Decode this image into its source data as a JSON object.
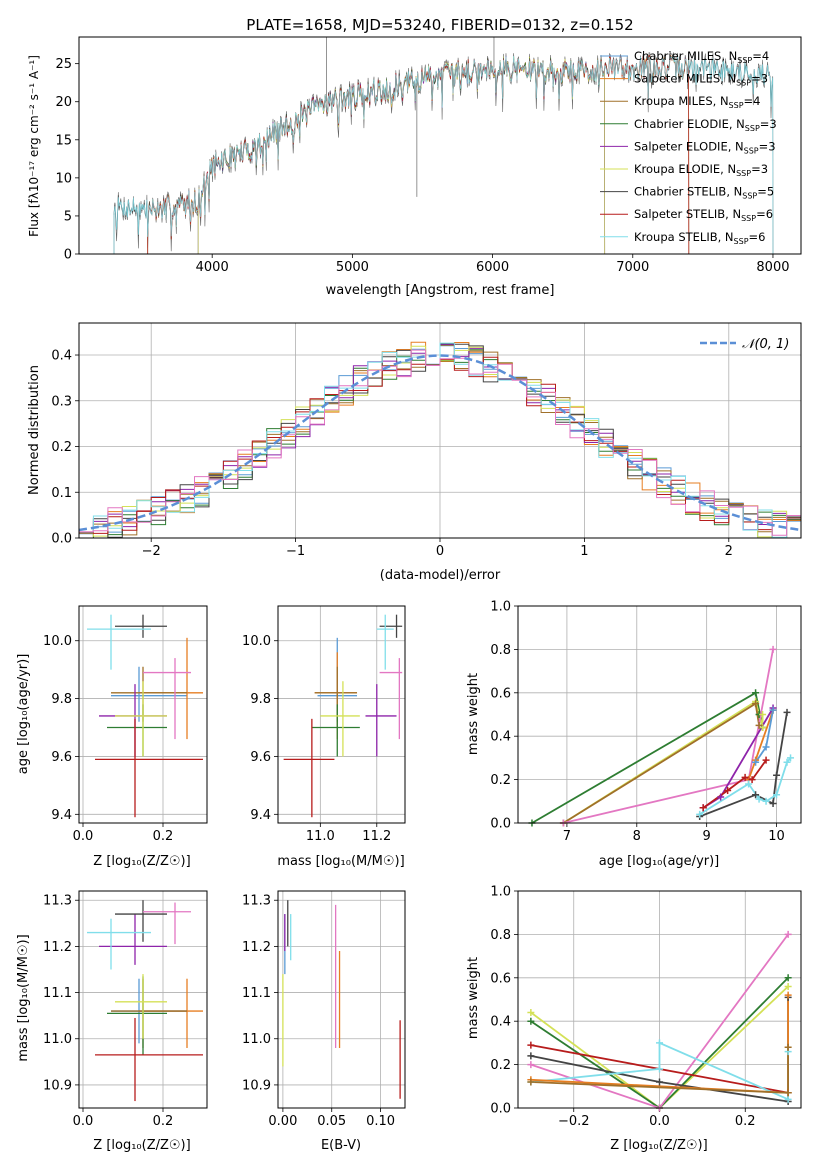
{
  "colors": {
    "Chabrier MILES": "#5b9bd5",
    "Salpeter MILES": "#e67e22",
    "Kroupa MILES": "#a0702a",
    "Chabrier ELODIE": "#2e7d32",
    "Salpeter ELODIE": "#8e24aa",
    "Kroupa ELODIE": "#d4e157",
    "Chabrier STELIB": "#444444",
    "Salpeter STELIB": "#b71c1c",
    "Kroupa STELIB": "#80deea",
    "pink": "#e377c2",
    "normal": "#5b8fd6"
  },
  "chart_data": [
    {
      "id": "spectrum",
      "type": "line",
      "title": "PLATE=1658, MJD=53240, FIBERID=0132, z=0.152",
      "xlabel": "wavelength [Angstrom, rest frame]",
      "ylabel": "Flux [fλ10⁻¹⁷ erg cm⁻² s⁻¹ A⁻¹]",
      "xlim": [
        3050,
        8200
      ],
      "ylim": [
        0,
        28.5
      ],
      "xticks": [
        4000,
        5000,
        6000,
        7000,
        8000
      ],
      "yticks": [
        0,
        5,
        10,
        15,
        20,
        25
      ],
      "legend_position": "top-right",
      "legend": [
        {
          "label": "Chabrier MILES, N",
          "sub": "SSP",
          "suffix": "=4"
        },
        {
          "label": "Salpeter MILES, N",
          "sub": "SSP",
          "suffix": "=3"
        },
        {
          "label": "Kroupa MILES, N",
          "sub": "SSP",
          "suffix": "=4"
        },
        {
          "label": "Chabrier ELODIE, N",
          "sub": "SSP",
          "suffix": "=3"
        },
        {
          "label": "Salpeter ELODIE, N",
          "sub": "SSP",
          "suffix": "=3"
        },
        {
          "label": "Kroupa ELODIE, N",
          "sub": "SSP",
          "suffix": "=3"
        },
        {
          "label": "Chabrier STELIB, N",
          "sub": "SSP",
          "suffix": "=5"
        },
        {
          "label": "Salpeter STELIB, N",
          "sub": "SSP",
          "suffix": "=6"
        },
        {
          "label": "Kroupa STELIB, N",
          "sub": "SSP",
          "suffix": "=6"
        }
      ],
      "continuum_nodes": [
        [
          3300,
          6.2
        ],
        [
          3600,
          5.8
        ],
        [
          3900,
          7.0
        ],
        [
          4000,
          11.5
        ],
        [
          4300,
          14.0
        ],
        [
          4500,
          16.5
        ],
        [
          4800,
          20.0
        ],
        [
          5200,
          21.5
        ],
        [
          5600,
          23.5
        ],
        [
          6000,
          24.5
        ],
        [
          6500,
          24.0
        ],
        [
          7000,
          24.5
        ],
        [
          7500,
          24.5
        ],
        [
          8000,
          23.5
        ]
      ]
    },
    {
      "id": "residuals",
      "type": "line",
      "xlabel": "(data-model)/error",
      "ylabel": "Normed distribution",
      "xlim": [
        -2.5,
        2.5
      ],
      "ylim": [
        0,
        0.47
      ],
      "xticks": [
        -2,
        -1,
        0,
        1,
        2
      ],
      "yticks": [
        0.0,
        0.1,
        0.2,
        0.3,
        0.4
      ],
      "grid": true,
      "legend": [
        {
          "label": "𝒩(0, 1)"
        }
      ],
      "legend_position": "top-right",
      "bin_width": 0.1
    },
    {
      "id": "age_Z",
      "type": "scatter",
      "xlabel": "Z [log₁₀(Z/Z☉)]",
      "ylabel": "age  [log₁₀(age/yr)]",
      "xlim": [
        -0.01,
        0.31
      ],
      "ylim": [
        9.37,
        10.12
      ],
      "xticks": [
        0.0,
        0.2
      ],
      "yticks": [
        9.4,
        9.6,
        9.8,
        10.0
      ],
      "grid": true,
      "points": [
        {
          "model": "Chabrier MILES",
          "x": 0.14,
          "y": 9.81,
          "xerr": [
            0.07,
            0.12
          ],
          "yerr": [
            0.09,
            0.1
          ]
        },
        {
          "model": "Salpeter MILES",
          "x": 0.26,
          "y": 9.82,
          "xerr": [
            0.12,
            0.04
          ],
          "yerr": [
            0.16,
            0.19
          ]
        },
        {
          "model": "Kroupa MILES",
          "x": 0.15,
          "y": 9.82,
          "xerr": [
            0.08,
            0.11
          ],
          "yerr": [
            0.1,
            0.09
          ]
        },
        {
          "model": "Chabrier ELODIE",
          "x": 0.15,
          "y": 9.7,
          "xerr": [
            0.09,
            0.06
          ],
          "yerr": [
            0.1,
            0.08
          ]
        },
        {
          "model": "Salpeter ELODIE",
          "x": 0.13,
          "y": 9.74,
          "xerr": [
            0.09,
            0.08
          ],
          "yerr": [
            0.14,
            0.11
          ]
        },
        {
          "model": "Kroupa ELODIE",
          "x": 0.15,
          "y": 9.74,
          "xerr": [
            0.07,
            0.06
          ],
          "yerr": [
            0.14,
            0.12
          ]
        },
        {
          "model": "Chabrier STELIB",
          "x": 0.15,
          "y": 10.05,
          "xerr": [
            0.07,
            0.06
          ],
          "yerr": [
            0.04,
            0.04
          ]
        },
        {
          "model": "Salpeter STELIB",
          "x": 0.13,
          "y": 9.59,
          "xerr": [
            0.1,
            0.17
          ],
          "yerr": [
            0.2,
            0.14
          ]
        },
        {
          "model": "Kroupa STELIB",
          "x": 0.07,
          "y": 10.04,
          "xerr": [
            0.06,
            0.1
          ],
          "yerr": [
            0.14,
            0.05
          ]
        },
        {
          "model": "pink",
          "x": 0.23,
          "y": 9.89,
          "xerr": [
            0.08,
            0.04
          ],
          "yerr": [
            0.23,
            0.05
          ]
        }
      ]
    },
    {
      "id": "age_mass",
      "type": "scatter",
      "xlabel": "mass [log₁₀(M/M☉)]",
      "xlim": [
        10.85,
        11.3
      ],
      "ylim": [
        9.37,
        10.12
      ],
      "xticks": [
        11.0,
        11.2
      ],
      "yticks": [
        9.4,
        9.6,
        9.8,
        10.0
      ],
      "grid": true,
      "points": [
        {
          "model": "Chabrier MILES",
          "x": 11.06,
          "y": 9.81,
          "xerr": [
            0.07,
            0.07
          ],
          "yerr": [
            0.09,
            0.2
          ]
        },
        {
          "model": "Salpeter MILES",
          "x": 11.06,
          "y": 9.82,
          "xerr": [
            0.08,
            0.07
          ],
          "yerr": [
            0.16,
            0.14
          ]
        },
        {
          "model": "Kroupa MILES",
          "x": 11.06,
          "y": 9.82,
          "xerr": [
            0.08,
            0.07
          ],
          "yerr": [
            0.1,
            0.09
          ]
        },
        {
          "model": "Chabrier ELODIE",
          "x": 11.06,
          "y": 9.7,
          "xerr": [
            0.09,
            0.08
          ],
          "yerr": [
            0.1,
            0.08
          ]
        },
        {
          "model": "Salpeter ELODIE",
          "x": 11.2,
          "y": 9.74,
          "xerr": [
            0.04,
            0.07
          ],
          "yerr": [
            0.14,
            0.11
          ]
        },
        {
          "model": "Kroupa ELODIE",
          "x": 11.08,
          "y": 9.74,
          "xerr": [
            0.08,
            0.06
          ],
          "yerr": [
            0.14,
            0.12
          ]
        },
        {
          "model": "Chabrier STELIB",
          "x": 11.27,
          "y": 10.05,
          "xerr": [
            0.06,
            0.02
          ],
          "yerr": [
            0.04,
            0.04
          ]
        },
        {
          "model": "Salpeter STELIB",
          "x": 10.97,
          "y": 9.59,
          "xerr": [
            0.1,
            0.08
          ],
          "yerr": [
            0.2,
            0.14
          ]
        },
        {
          "model": "Kroupa STELIB",
          "x": 11.23,
          "y": 10.04,
          "xerr": [
            0.03,
            0.03
          ],
          "yerr": [
            0.14,
            0.05
          ]
        },
        {
          "model": "pink",
          "x": 11.28,
          "y": 9.89,
          "xerr": [
            0.07,
            0.01
          ],
          "yerr": [
            0.23,
            0.05
          ]
        }
      ]
    },
    {
      "id": "mass_weight_age",
      "type": "line",
      "xlabel": "age  [log₁₀(age/yr)]",
      "ylabel": "mass weight",
      "xlim": [
        6.3,
        10.35
      ],
      "ylim": [
        0,
        1.0
      ],
      "xticks": [
        7,
        8,
        9,
        10
      ],
      "yticks": [
        0.0,
        0.2,
        0.4,
        0.6,
        0.8,
        1.0
      ],
      "grid": true,
      "series": [
        {
          "model": "Chabrier ELODIE",
          "x": [
            6.5,
            9.7,
            9.8,
            9.75
          ],
          "y": [
            0.0,
            0.6,
            0.44,
            0.5
          ]
        },
        {
          "model": "Kroupa ELODIE",
          "x": [
            6.95,
            9.7,
            9.8,
            9.8
          ],
          "y": [
            0.0,
            0.56,
            0.44,
            0.5
          ]
        },
        {
          "model": "Kroupa MILES",
          "x": [
            6.95,
            9.7,
            9.75
          ],
          "y": [
            0.0,
            0.55,
            0.45
          ]
        },
        {
          "model": "pink",
          "x": [
            6.95,
            9.6,
            9.95
          ],
          "y": [
            0.0,
            0.2,
            0.8
          ]
        },
        {
          "model": "Salpeter MILES",
          "x": [
            9.6,
            9.7,
            9.95
          ],
          "y": [
            0.2,
            0.29,
            0.52
          ]
        },
        {
          "model": "Salpeter ELODIE",
          "x": [
            8.95,
            9.2,
            9.95
          ],
          "y": [
            0.07,
            0.12,
            0.53
          ]
        },
        {
          "model": "Chabrier MILES",
          "x": [
            9.7,
            9.85,
            9.95
          ],
          "y": [
            0.28,
            0.35,
            0.52
          ]
        },
        {
          "model": "Chabrier STELIB",
          "x": [
            8.9,
            9.7,
            9.95,
            10.0,
            10.15
          ],
          "y": [
            0.03,
            0.13,
            0.09,
            0.22,
            0.51
          ]
        },
        {
          "model": "Salpeter STELIB",
          "x": [
            8.95,
            9.3,
            9.55,
            9.65,
            9.85
          ],
          "y": [
            0.07,
            0.15,
            0.21,
            0.2,
            0.29
          ]
        },
        {
          "model": "Kroupa STELIB",
          "x": [
            8.9,
            9.6,
            9.75,
            9.85,
            10.0,
            10.15,
            10.2
          ],
          "y": [
            0.04,
            0.18,
            0.11,
            0.1,
            0.13,
            0.28,
            0.3
          ]
        }
      ]
    },
    {
      "id": "mass_Z",
      "type": "scatter",
      "xlabel": "Z [log₁₀(Z/Z☉)]",
      "ylabel": "mass [log₁₀(M/M☉)]",
      "xlim": [
        -0.01,
        0.31
      ],
      "ylim": [
        10.85,
        11.32
      ],
      "xticks": [
        0.0,
        0.2
      ],
      "yticks": [
        10.9,
        11.0,
        11.1,
        11.2,
        11.3
      ],
      "grid": true,
      "points": [
        {
          "model": "Chabrier MILES",
          "x": 0.14,
          "y": 11.06,
          "xerr": [
            0.07,
            0.12
          ],
          "yerr": [
            0.07,
            0.07
          ]
        },
        {
          "model": "Salpeter MILES",
          "x": 0.26,
          "y": 11.06,
          "xerr": [
            0.12,
            0.04
          ],
          "yerr": [
            0.08,
            0.07
          ]
        },
        {
          "model": "Kroupa MILES",
          "x": 0.15,
          "y": 11.06,
          "xerr": [
            0.08,
            0.11
          ],
          "yerr": [
            0.08,
            0.07
          ]
        },
        {
          "model": "Chabrier ELODIE",
          "x": 0.15,
          "y": 11.055,
          "xerr": [
            0.09,
            0.06
          ],
          "yerr": [
            0.09,
            0.08
          ]
        },
        {
          "model": "Salpeter ELODIE",
          "x": 0.13,
          "y": 11.2,
          "xerr": [
            0.09,
            0.08
          ],
          "yerr": [
            0.04,
            0.07
          ]
        },
        {
          "model": "Kroupa ELODIE",
          "x": 0.15,
          "y": 11.08,
          "xerr": [
            0.07,
            0.06
          ],
          "yerr": [
            0.08,
            0.06
          ]
        },
        {
          "model": "Chabrier STELIB",
          "x": 0.15,
          "y": 11.27,
          "xerr": [
            0.07,
            0.06
          ],
          "yerr": [
            0.06,
            0.03
          ]
        },
        {
          "model": "Salpeter STELIB",
          "x": 0.13,
          "y": 10.965,
          "xerr": [
            0.1,
            0.17
          ],
          "yerr": [
            0.1,
            0.08
          ]
        },
        {
          "model": "Kroupa STELIB",
          "x": 0.07,
          "y": 11.23,
          "xerr": [
            0.06,
            0.1
          ],
          "yerr": [
            0.08,
            0.03
          ]
        },
        {
          "model": "pink",
          "x": 0.23,
          "y": 11.275,
          "xerr": [
            0.08,
            0.04
          ],
          "yerr": [
            0.07,
            0.02
          ]
        }
      ]
    },
    {
      "id": "mass_ebv",
      "type": "scatter",
      "xlabel": "E(B-V)",
      "xlim": [
        -0.005,
        0.125
      ],
      "ylim": [
        10.85,
        11.32
      ],
      "xticks": [
        0.0,
        0.05,
        0.1
      ],
      "yticks": [
        10.9,
        11.0,
        11.1,
        11.2,
        11.3
      ],
      "grid": true,
      "points": [
        {
          "model": "Chabrier MILES",
          "x": 0.002,
          "y": 11.22,
          "yerr": [
            0.08,
            0.05
          ]
        },
        {
          "model": "Salpeter MILES",
          "x": 0.058,
          "y": 11.06,
          "yerr": [
            0.08,
            0.13
          ]
        },
        {
          "model": "Kroupa ELODIE",
          "x": 0.0,
          "y": 11.04,
          "yerr": [
            0.1,
            0.1
          ]
        },
        {
          "model": "Chabrier STELIB",
          "x": 0.005,
          "y": 11.25,
          "yerr": [
            0.05,
            0.05
          ]
        },
        {
          "model": "Salpeter ELODIE",
          "x": 0.002,
          "y": 11.23,
          "yerr": [
            0.04,
            0.04
          ]
        },
        {
          "model": "Salpeter STELIB",
          "x": 0.12,
          "y": 10.95,
          "yerr": [
            0.08,
            0.09
          ]
        },
        {
          "model": "Kroupa STELIB",
          "x": 0.008,
          "y": 11.22,
          "yerr": [
            0.05,
            0.05
          ]
        },
        {
          "model": "pink",
          "x": 0.054,
          "y": 11.15,
          "yerr": [
            0.17,
            0.14
          ]
        }
      ]
    },
    {
      "id": "mass_weight_Z",
      "type": "line",
      "xlabel": "Z [log₁₀(Z/Z☉)]",
      "ylabel": "mass weight",
      "xlim": [
        -0.33,
        0.33
      ],
      "ylim": [
        0,
        1.0
      ],
      "xticks": [
        -0.2,
        0.0,
        0.2
      ],
      "yticks": [
        0.0,
        0.2,
        0.4,
        0.6,
        0.8,
        1.0
      ],
      "grid": true,
      "series": [
        {
          "model": "Kroupa ELODIE",
          "x": [
            -0.3,
            0.0,
            0.3
          ],
          "y": [
            0.44,
            0.0,
            0.56
          ]
        },
        {
          "model": "Chabrier ELODIE",
          "x": [
            -0.3,
            0.0,
            0.3
          ],
          "y": [
            0.4,
            0.0,
            0.6
          ]
        },
        {
          "model": "pink",
          "x": [
            -0.3,
            0.0,
            0.3
          ],
          "y": [
            0.2,
            0.0,
            0.8
          ]
        },
        {
          "model": "Salpeter STELIB",
          "x": [
            -0.3,
            0.3
          ],
          "y": [
            0.29,
            0.07
          ]
        },
        {
          "model": "Chabrier STELIB",
          "x": [
            -0.3,
            0.0,
            0.3,
            0.3
          ],
          "y": [
            0.24,
            0.12,
            0.03,
            0.51
          ]
        },
        {
          "model": "Kroupa STELIB",
          "x": [
            -0.3,
            0.0,
            0.0,
            0.3,
            0.3
          ],
          "y": [
            0.12,
            0.18,
            0.3,
            0.04,
            0.26
          ]
        },
        {
          "model": "Salpeter MILES",
          "x": [
            -0.3,
            0.3,
            0.3
          ],
          "y": [
            0.13,
            0.07,
            0.52
          ]
        },
        {
          "model": "Kroupa MILES",
          "x": [
            -0.3,
            0.3,
            0.3
          ],
          "y": [
            0.12,
            0.07,
            0.28
          ]
        }
      ]
    }
  ]
}
